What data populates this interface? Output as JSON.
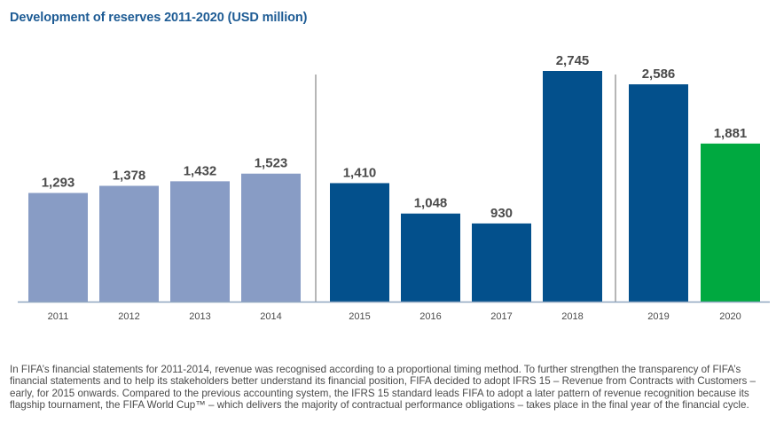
{
  "chart_data": {
    "type": "bar",
    "title": "Development of reserves 2011-2020 (USD million)",
    "xlabel": "",
    "ylabel": "",
    "ylim": [
      0,
      2745
    ],
    "grid": false,
    "categories": [
      "2011",
      "2012",
      "2013",
      "2014",
      "2015",
      "2016",
      "2017",
      "2018",
      "2019",
      "2020"
    ],
    "values": [
      1293,
      1378,
      1432,
      1523,
      1410,
      1048,
      930,
      2745,
      2586,
      1881
    ],
    "data_labels": [
      "1,293",
      "1,378",
      "1,432",
      "1,523",
      "1,410",
      "1,048",
      "930",
      "2,745",
      "2,586",
      "1,881"
    ],
    "bar_groups": [
      "pre-ifrs",
      "pre-ifrs",
      "pre-ifrs",
      "pre-ifrs",
      "ifrs",
      "ifrs",
      "ifrs",
      "ifrs",
      "ifrs",
      "current"
    ],
    "group_colors": {
      "pre-ifrs": "#889cc5",
      "ifrs": "#03508c",
      "current": "#00a940"
    },
    "dividers_after": [
      "2014",
      "2018"
    ]
  },
  "footnote": "In FIFA’s financial statements for 2011-2014, revenue was recognised according to a proportional timing method. To further strengthen the transparency of FIFA’s financial statements and to help its stakeholders better understand its financial position, FIFA decided to adopt IFRS 15 – Revenue from Contracts with Customers – early, for 2015 onwards. Compared to the previous accounting system, the IFRS 15 standard leads FIFA to adopt a later pattern of revenue recognition because its flagship tournament, the FIFA World Cup™ – which delivers the majority of contractual performance obligations – takes place in the final year of the financial cycle."
}
